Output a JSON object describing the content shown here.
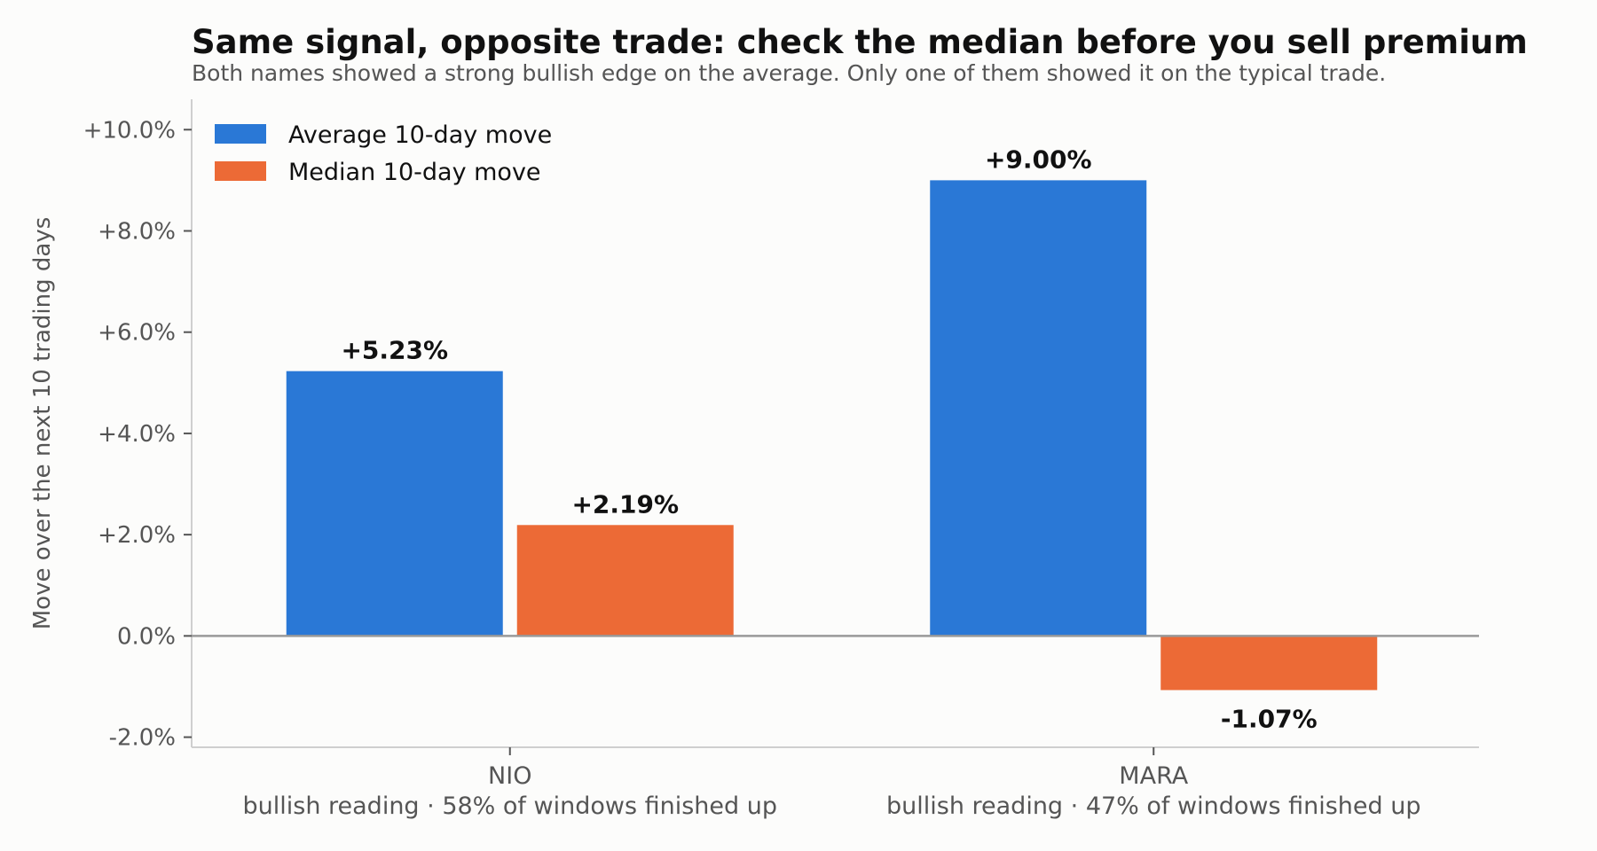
{
  "header": {
    "title": "Same signal, opposite trade: check the median before you sell premium",
    "subtitle": "Both names showed a strong bullish edge on the average. Only one of them showed it on the typical trade."
  },
  "chart_data": {
    "type": "bar",
    "title": "Same signal, opposite trade: check the median before you sell premium",
    "subtitle": "Both names showed a strong bullish edge on the average. Only one of them showed it on the typical trade.",
    "xlabel": "",
    "ylabel": "Move over the next 10 trading days",
    "ylim": [
      -2.2,
      10.6
    ],
    "yticks": [
      -2,
      0,
      2,
      4,
      6,
      8,
      10
    ],
    "ytick_labels": [
      "-2.0%",
      "0.0%",
      "+2.0%",
      "+4.0%",
      "+6.0%",
      "+8.0%",
      "+10.0%"
    ],
    "categories": [
      "NIO",
      "MARA"
    ],
    "category_sublabels": [
      "bullish reading · 58% of windows finished up",
      "bullish reading · 47% of windows finished up"
    ],
    "series": [
      {
        "name": "Average 10-day move",
        "color": "#2a78d6",
        "values": [
          5.23,
          9.0
        ],
        "labels": [
          "+5.23%",
          "+9.00%"
        ]
      },
      {
        "name": "Median 10-day move",
        "color": "#ec6a36",
        "values": [
          2.19,
          -1.07
        ],
        "labels": [
          "+2.19%",
          "-1.07%"
        ]
      }
    ],
    "legend_position": "top-left",
    "grid": false,
    "zero_line": true
  }
}
